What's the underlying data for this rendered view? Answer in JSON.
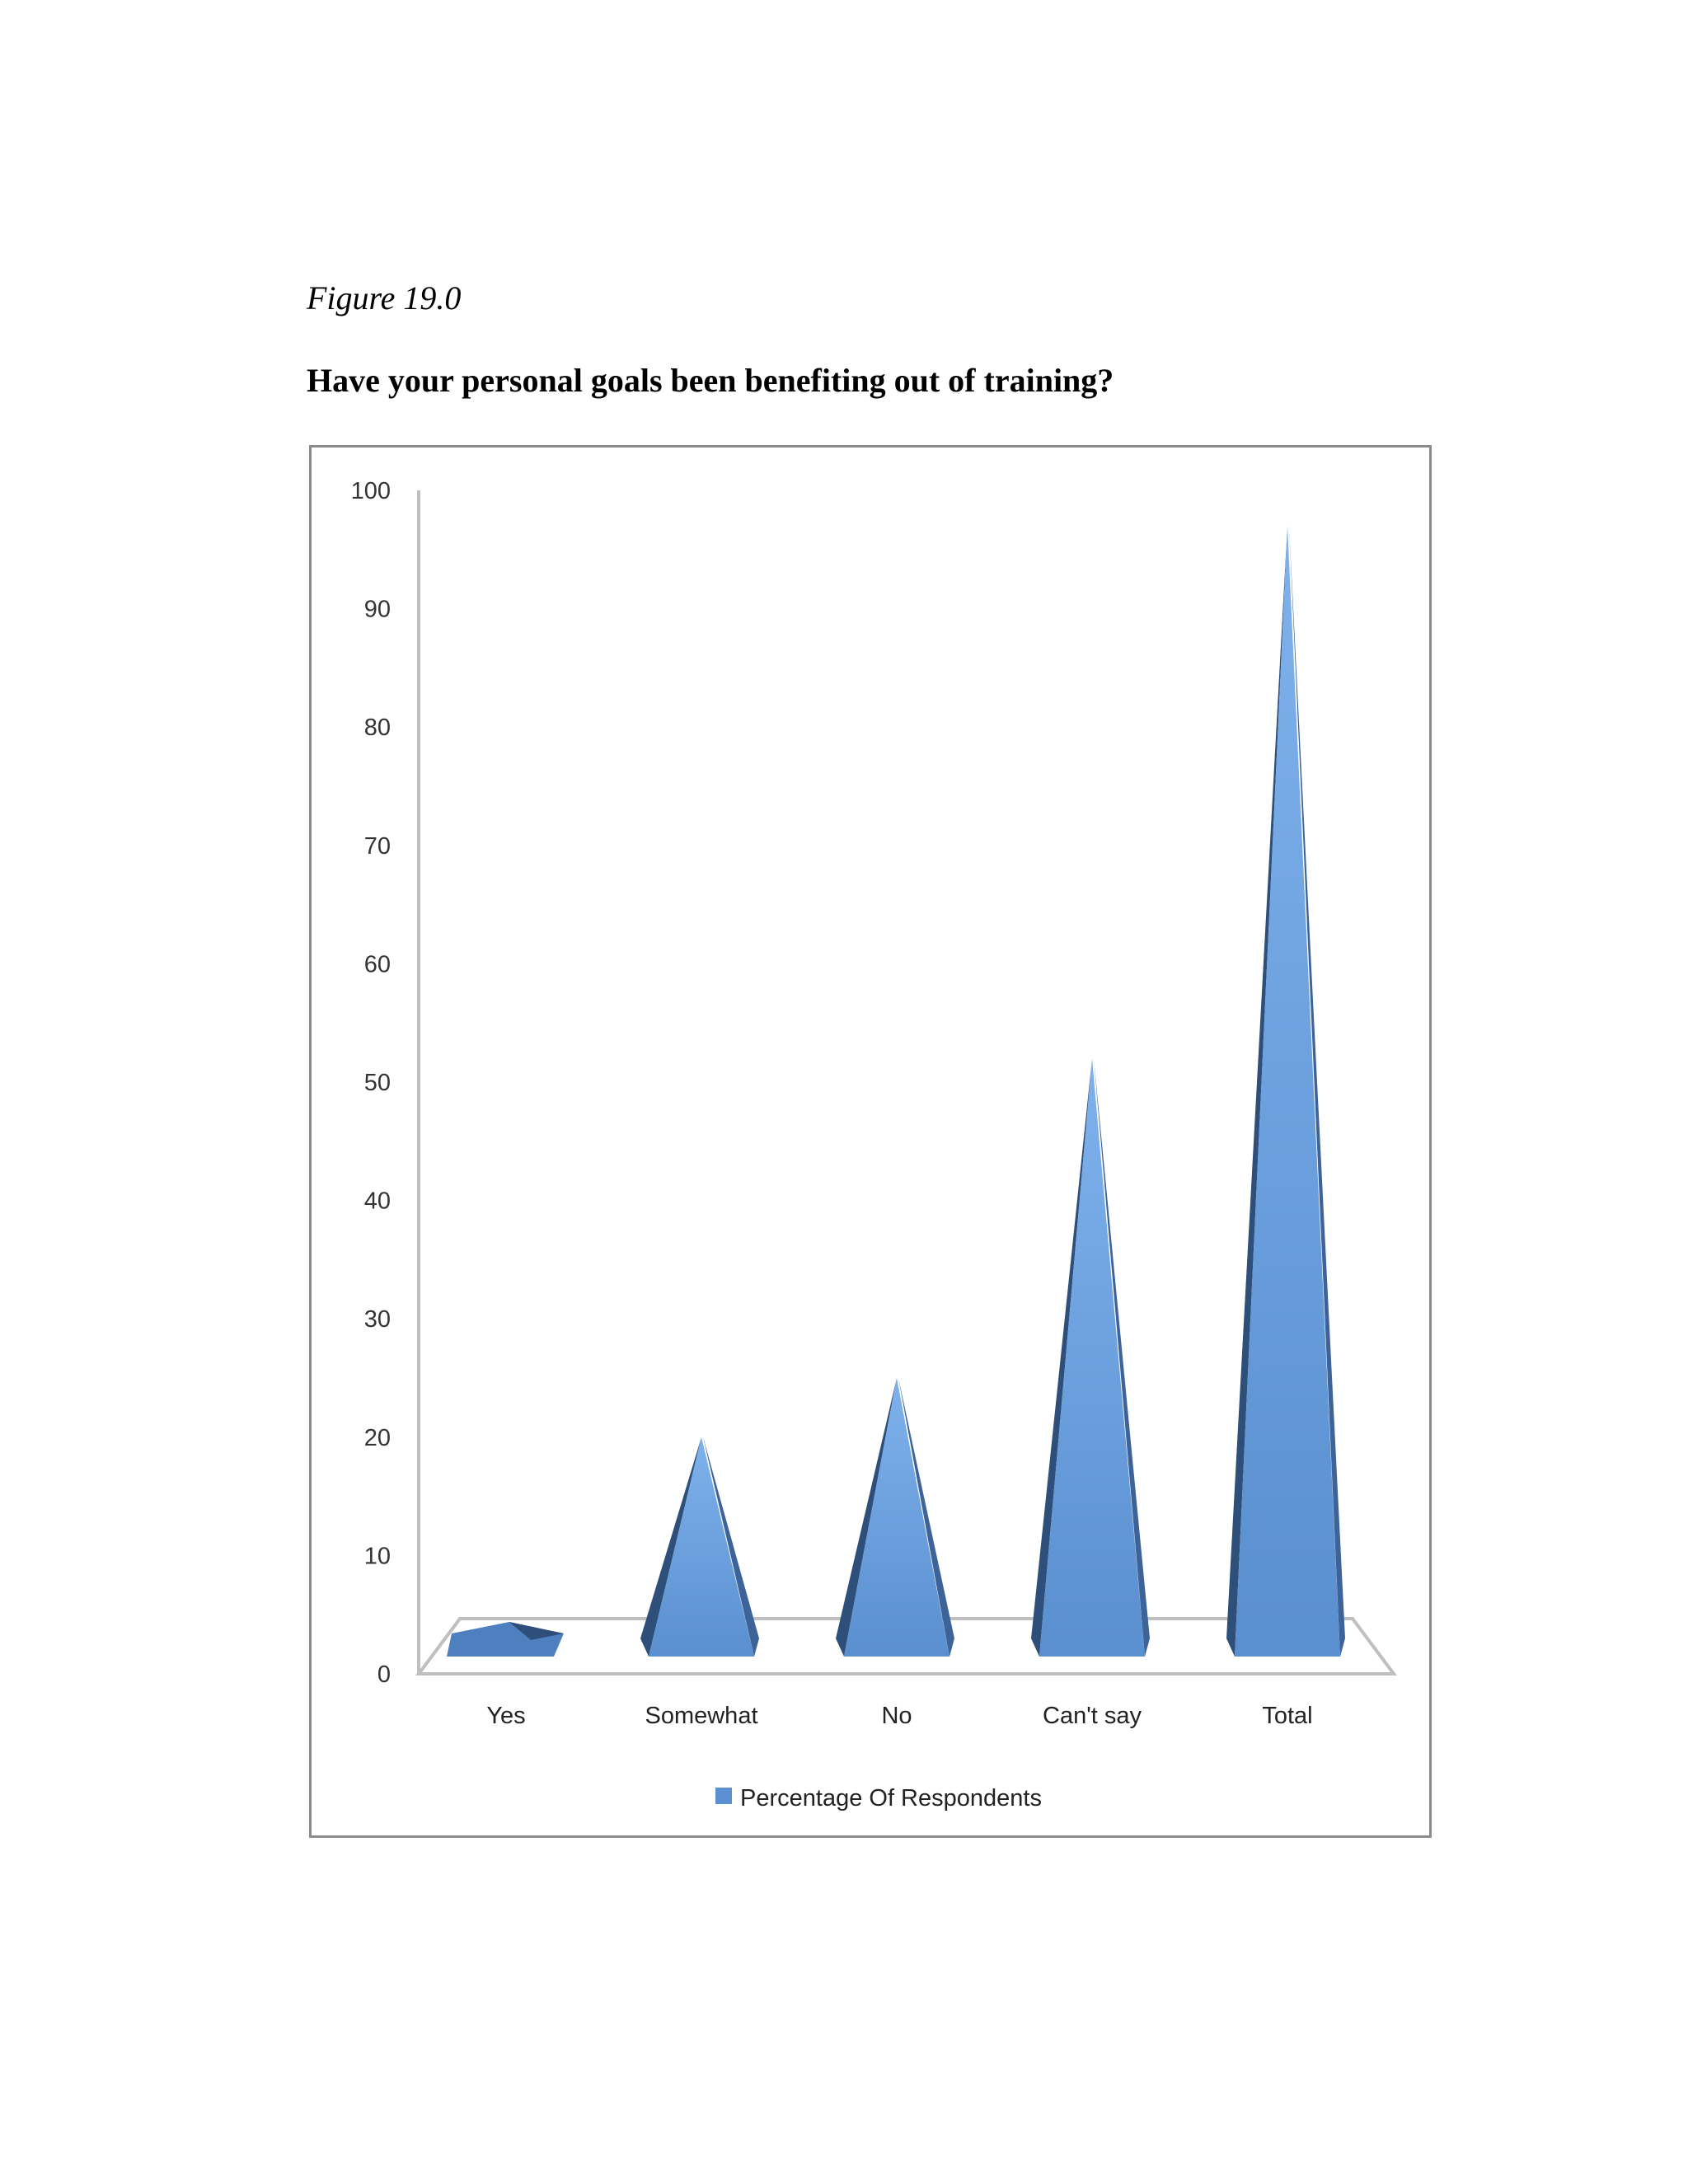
{
  "figure_label": "Figure 19.0",
  "question": "Have your personal goals been benefiting out of training?",
  "colors": {
    "series": "#5b8fd1",
    "series_light": "#76a9e6",
    "series_dark": "#2e4f7a",
    "axis": "#bfbfbf",
    "frame": "#8c8c8c"
  },
  "chart_data": {
    "type": "bar",
    "shape": "cone-3d",
    "categories": [
      "Yes",
      "Somewhat",
      "No",
      "Can't say",
      "Total"
    ],
    "series": [
      {
        "name": "Percentage Of Respondents",
        "values": [
          1,
          20,
          25,
          52,
          97
        ]
      }
    ],
    "yticks": [
      0,
      10,
      20,
      30,
      40,
      50,
      60,
      70,
      80,
      90,
      100
    ],
    "ylim": [
      0,
      100
    ],
    "grid": false,
    "legend": "bottom"
  }
}
